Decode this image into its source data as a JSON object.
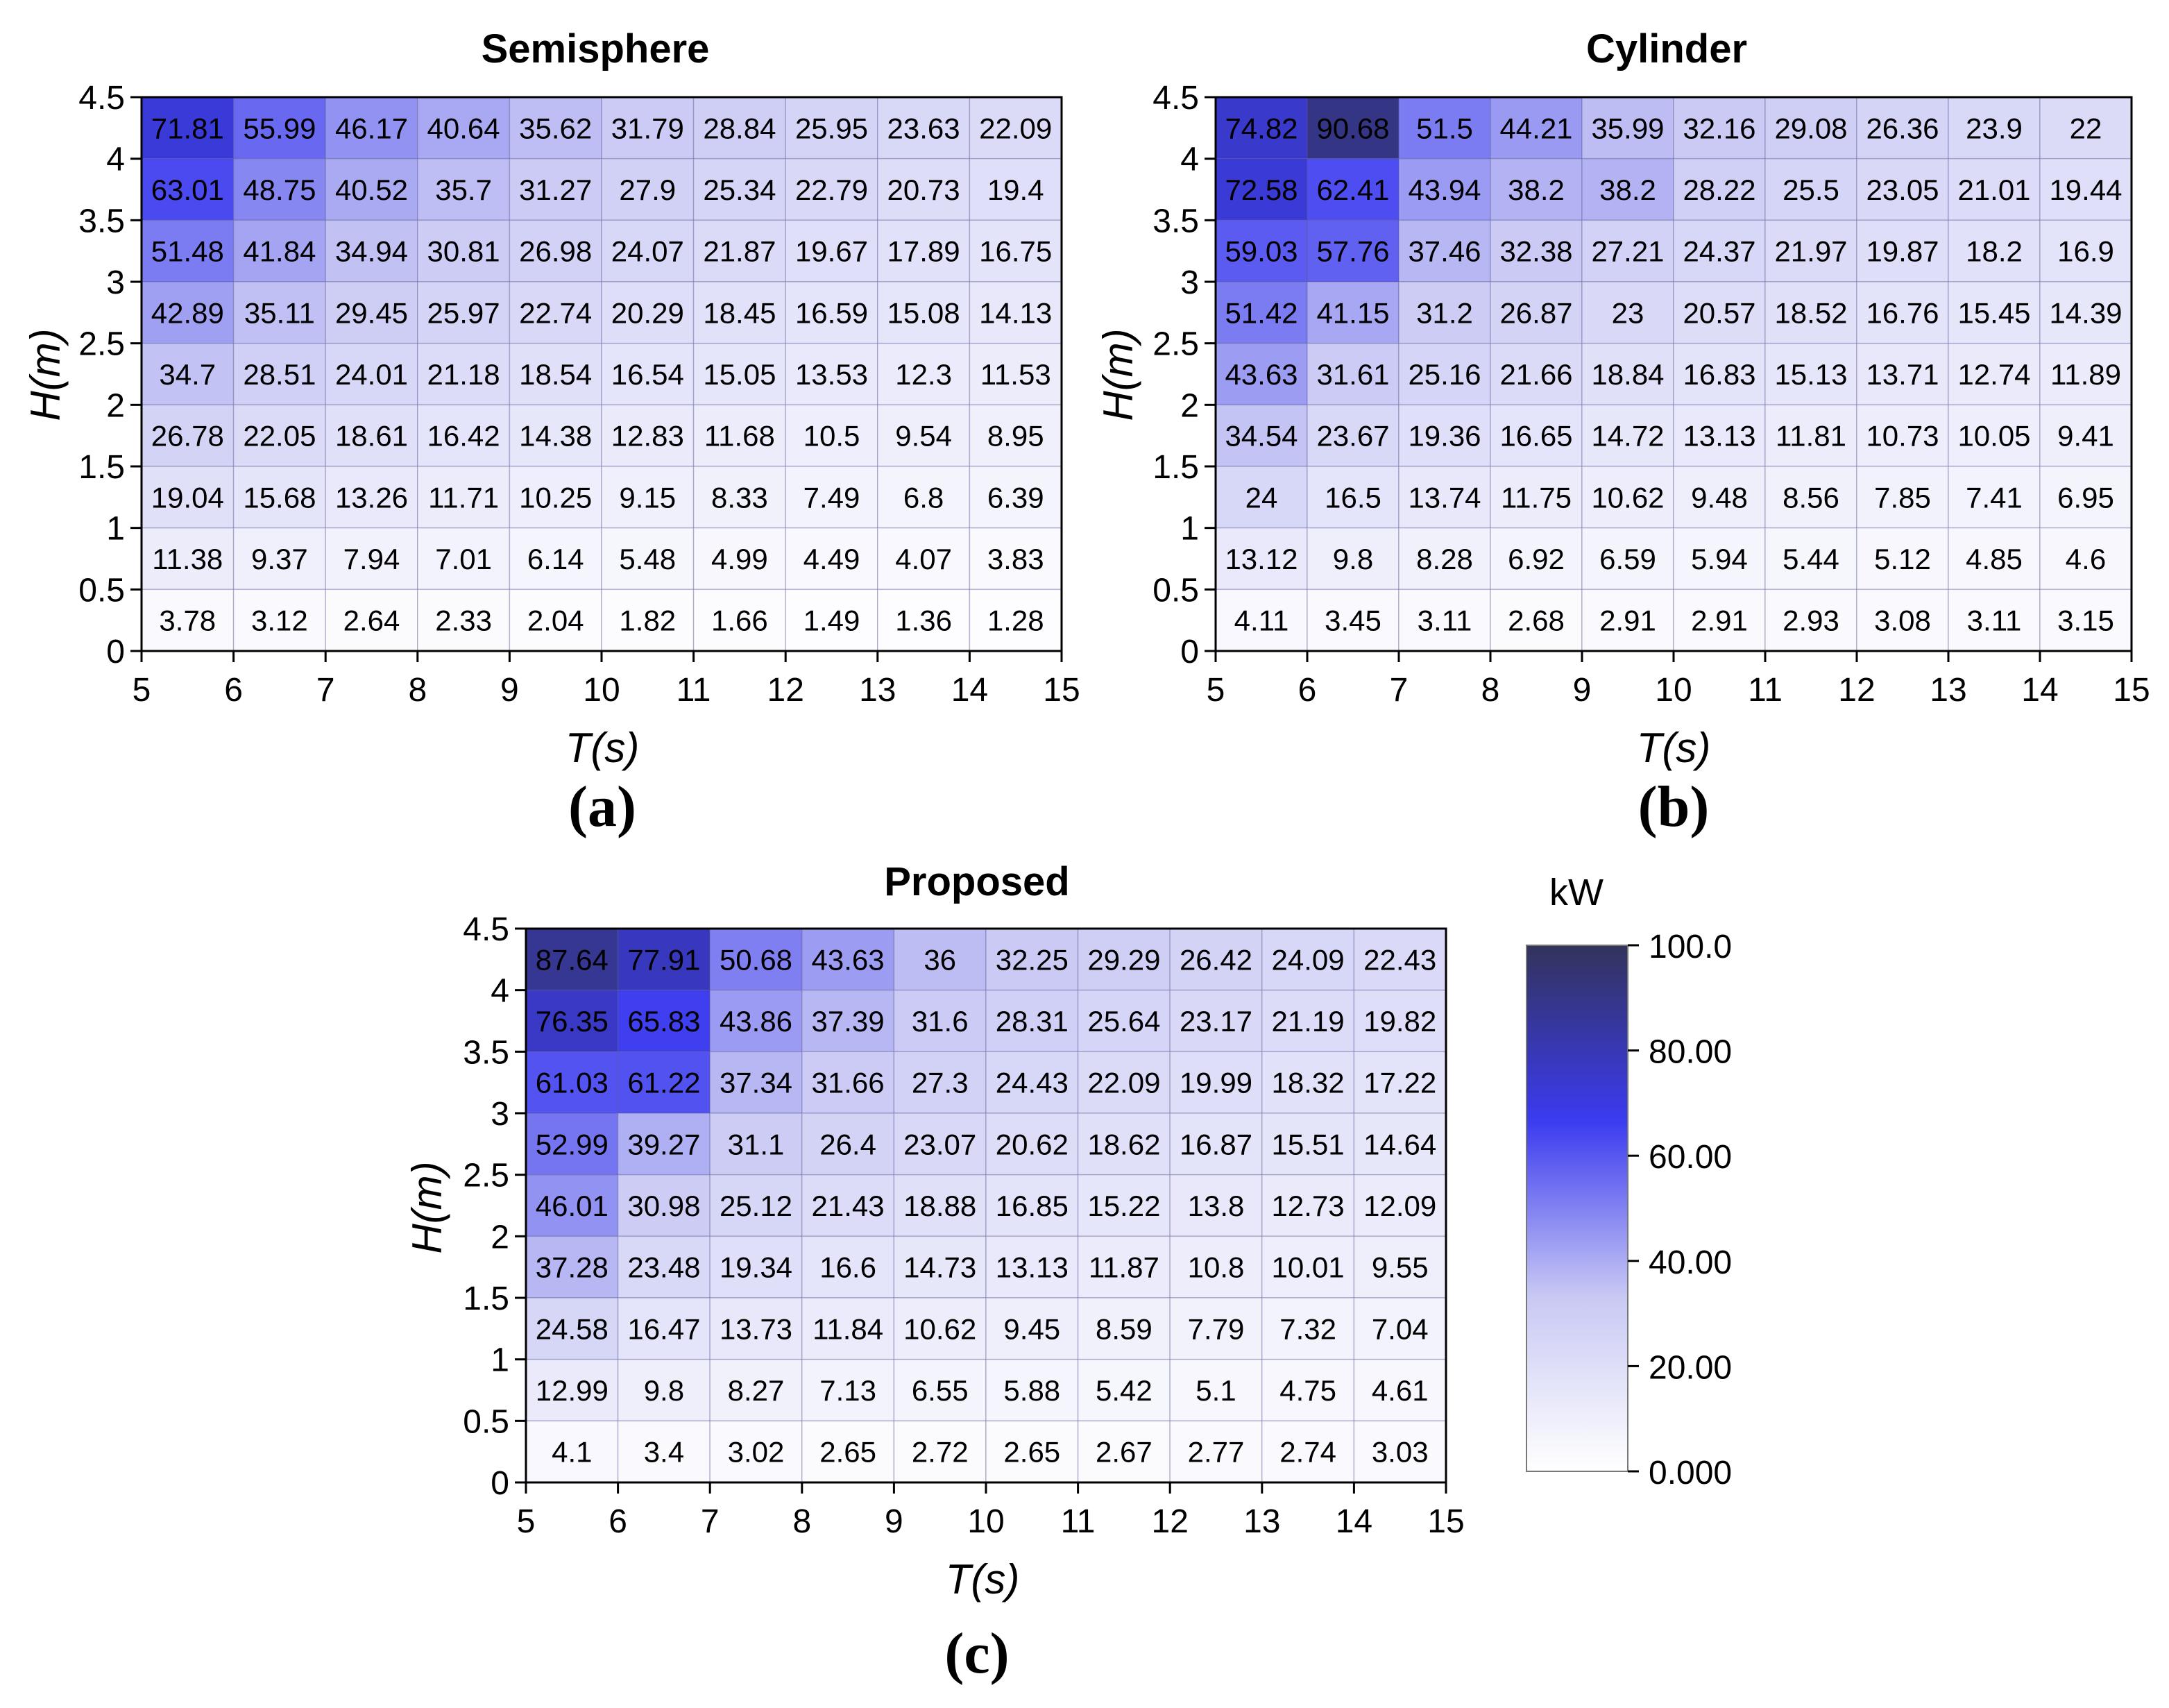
{
  "colorbar": {
    "unit": "kW",
    "ticks": [
      "100.0",
      "80.00",
      "60.00",
      "40.00",
      "20.00",
      "0.000"
    ],
    "min": 0,
    "max": 100,
    "colors": [
      "#ffffff",
      "#c8c8f4",
      "#3b3bf0",
      "#33335c"
    ]
  },
  "chart_data": [
    {
      "type": "heatmap",
      "title": "Semisphere",
      "panel_label": "(a)",
      "xlabel": "T(s)",
      "ylabel": "H(m)",
      "xticks": [
        "5",
        "6",
        "7",
        "8",
        "9",
        "10",
        "11",
        "12",
        "13",
        "14",
        "15"
      ],
      "yticks": [
        "0",
        "0.5",
        "1",
        "1.5",
        "2",
        "2.5",
        "3",
        "3.5",
        "4",
        "4.5"
      ],
      "xlim": [
        5,
        15
      ],
      "ylim": [
        0,
        4.5
      ],
      "rows": [
        [
          "71.81",
          "55.99",
          "46.17",
          "40.64",
          "35.62",
          "31.79",
          "28.84",
          "25.95",
          "23.63",
          "22.09"
        ],
        [
          "63.01",
          "48.75",
          "40.52",
          "35.7",
          "31.27",
          "27.9",
          "25.34",
          "22.79",
          "20.73",
          "19.4"
        ],
        [
          "51.48",
          "41.84",
          "34.94",
          "30.81",
          "26.98",
          "24.07",
          "21.87",
          "19.67",
          "17.89",
          "16.75"
        ],
        [
          "42.89",
          "35.11",
          "29.45",
          "25.97",
          "22.74",
          "20.29",
          "18.45",
          "16.59",
          "15.08",
          "14.13"
        ],
        [
          "34.7",
          "28.51",
          "24.01",
          "21.18",
          "18.54",
          "16.54",
          "15.05",
          "13.53",
          "12.3",
          "11.53"
        ],
        [
          "26.78",
          "22.05",
          "18.61",
          "16.42",
          "14.38",
          "12.83",
          "11.68",
          "10.5",
          "9.54",
          "8.95"
        ],
        [
          "19.04",
          "15.68",
          "13.26",
          "11.71",
          "10.25",
          "9.15",
          "8.33",
          "7.49",
          "6.8",
          "6.39"
        ],
        [
          "11.38",
          "9.37",
          "7.94",
          "7.01",
          "6.14",
          "5.48",
          "4.99",
          "4.49",
          "4.07",
          "3.83"
        ],
        [
          "3.78",
          "3.12",
          "2.64",
          "2.33",
          "2.04",
          "1.82",
          "1.66",
          "1.49",
          "1.36",
          "1.28"
        ]
      ]
    },
    {
      "type": "heatmap",
      "title": "Cylinder",
      "panel_label": "(b)",
      "xlabel": "T(s)",
      "ylabel": "H(m)",
      "xticks": [
        "5",
        "6",
        "7",
        "8",
        "9",
        "10",
        "11",
        "12",
        "13",
        "14",
        "15"
      ],
      "yticks": [
        "0",
        "0.5",
        "1",
        "1.5",
        "2",
        "2.5",
        "3",
        "3.5",
        "4",
        "4.5"
      ],
      "xlim": [
        5,
        15
      ],
      "ylim": [
        0,
        4.5
      ],
      "rows": [
        [
          "74.82",
          "90.68",
          "51.5",
          "44.21",
          "35.99",
          "32.16",
          "29.08",
          "26.36",
          "23.9",
          "22"
        ],
        [
          "72.58",
          "62.41",
          "43.94",
          "38.2",
          "38.2",
          "28.22",
          "25.5",
          "23.05",
          "21.01",
          "19.44"
        ],
        [
          "59.03",
          "57.76",
          "37.46",
          "32.38",
          "27.21",
          "24.37",
          "21.97",
          "19.87",
          "18.2",
          "16.9"
        ],
        [
          "51.42",
          "41.15",
          "31.2",
          "26.87",
          "23",
          "20.57",
          "18.52",
          "16.76",
          "15.45",
          "14.39"
        ],
        [
          "43.63",
          "31.61",
          "25.16",
          "21.66",
          "18.84",
          "16.83",
          "15.13",
          "13.71",
          "12.74",
          "11.89"
        ],
        [
          "34.54",
          "23.67",
          "19.36",
          "16.65",
          "14.72",
          "13.13",
          "11.81",
          "10.73",
          "10.05",
          "9.41"
        ],
        [
          "24",
          "16.5",
          "13.74",
          "11.75",
          "10.62",
          "9.48",
          "8.56",
          "7.85",
          "7.41",
          "6.95"
        ],
        [
          "13.12",
          "9.8",
          "8.28",
          "6.92",
          "6.59",
          "5.94",
          "5.44",
          "5.12",
          "4.85",
          "4.6"
        ],
        [
          "4.11",
          "3.45",
          "3.11",
          "2.68",
          "2.91",
          "2.91",
          "2.93",
          "3.08",
          "3.11",
          "3.15"
        ]
      ]
    },
    {
      "type": "heatmap",
      "title": "Proposed",
      "panel_label": "(c)",
      "xlabel": "T(s)",
      "ylabel": "H(m)",
      "xticks": [
        "5",
        "6",
        "7",
        "8",
        "9",
        "10",
        "11",
        "12",
        "13",
        "14",
        "15"
      ],
      "yticks": [
        "0",
        "0.5",
        "1",
        "1.5",
        "2",
        "2.5",
        "3",
        "3.5",
        "4",
        "4.5"
      ],
      "xlim": [
        5,
        15
      ],
      "ylim": [
        0,
        4.5
      ],
      "rows": [
        [
          "87.64",
          "77.91",
          "50.68",
          "43.63",
          "36",
          "32.25",
          "29.29",
          "26.42",
          "24.09",
          "22.43"
        ],
        [
          "76.35",
          "65.83",
          "43.86",
          "37.39",
          "31.6",
          "28.31",
          "25.64",
          "23.17",
          "21.19",
          "19.82"
        ],
        [
          "61.03",
          "61.22",
          "37.34",
          "31.66",
          "27.3",
          "24.43",
          "22.09",
          "19.99",
          "18.32",
          "17.22"
        ],
        [
          "52.99",
          "39.27",
          "31.1",
          "26.4",
          "23.07",
          "20.62",
          "18.62",
          "16.87",
          "15.51",
          "14.64"
        ],
        [
          "46.01",
          "30.98",
          "25.12",
          "21.43",
          "18.88",
          "16.85",
          "15.22",
          "13.8",
          "12.73",
          "12.09"
        ],
        [
          "37.28",
          "23.48",
          "19.34",
          "16.6",
          "14.73",
          "13.13",
          "11.87",
          "10.8",
          "10.01",
          "9.55"
        ],
        [
          "24.58",
          "16.47",
          "13.73",
          "11.84",
          "10.62",
          "9.45",
          "8.59",
          "7.79",
          "7.32",
          "7.04"
        ],
        [
          "12.99",
          "9.8",
          "8.27",
          "7.13",
          "6.55",
          "5.88",
          "5.42",
          "5.1",
          "4.75",
          "4.61"
        ],
        [
          "4.1",
          "3.4",
          "3.02",
          "2.65",
          "2.72",
          "2.65",
          "2.67",
          "2.77",
          "2.74",
          "3.03"
        ]
      ]
    }
  ]
}
